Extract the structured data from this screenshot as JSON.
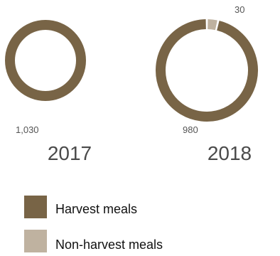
{
  "chart_data": {
    "type": "pie",
    "legend": {
      "position": "bottom-left",
      "items": [
        {
          "label": "Harvest meals",
          "color": "#786446"
        },
        {
          "label": "Non-harvest meals",
          "color": "#bfb2a0"
        }
      ]
    },
    "charts": [
      {
        "year": "2017",
        "slices": [
          {
            "category": "Harvest meals",
            "value": 1030,
            "label": "1,030"
          }
        ]
      },
      {
        "year": "2018",
        "slices": [
          {
            "category": "Harvest meals",
            "value": 980,
            "label": "980"
          },
          {
            "category": "Non-harvest meals",
            "value": 30,
            "label": "30"
          }
        ]
      }
    ]
  }
}
